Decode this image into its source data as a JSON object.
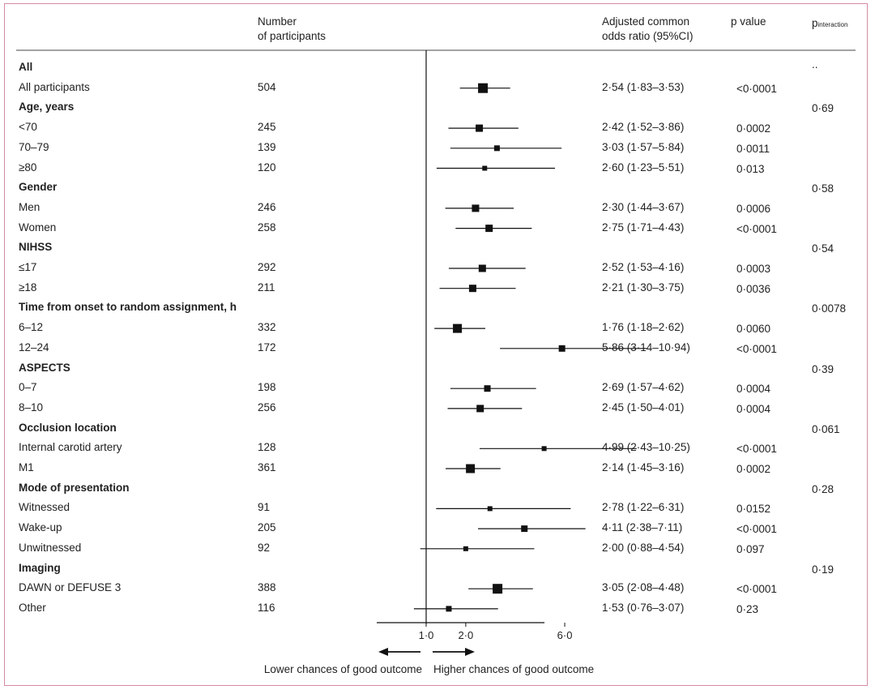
{
  "headers": {
    "participants_l1": "Number",
    "participants_l2": "of participants",
    "or_l1": "Adjusted common",
    "or_l2": "odds ratio (95%CI)",
    "pvalue": "p value",
    "pinteraction_main": "p",
    "pinteraction_sub": "interaction"
  },
  "chart_data": {
    "type": "forest",
    "x_axis": {
      "reference": 1.0,
      "ticks": [
        1.0,
        2.0,
        6.0
      ],
      "tick_labels": [
        "1·0",
        "2·0",
        "6·0"
      ],
      "scale": "sqrt"
    },
    "direction_labels": {
      "left": "Lower chances of good outcome",
      "right": "Higher chances of good outcome"
    },
    "rows": [
      {
        "kind": "header",
        "label": "All",
        "pinteraction": ".."
      },
      {
        "kind": "data",
        "label": "All participants",
        "n": "504",
        "or": 2.54,
        "lo": 1.83,
        "hi": 3.53,
        "or_text": "2·54 (1·83–3·53)",
        "p": "<0·0001",
        "size": 12
      },
      {
        "kind": "header",
        "label": "Age, years",
        "pinteraction": "0·69"
      },
      {
        "kind": "data",
        "label": "<70",
        "n": "245",
        "or": 2.42,
        "lo": 1.52,
        "hi": 3.86,
        "or_text": "2·42 (1·52–3·86)",
        "p": "0·0002",
        "size": 9
      },
      {
        "kind": "data",
        "label": "70–79",
        "n": "139",
        "or": 3.03,
        "lo": 1.57,
        "hi": 5.84,
        "or_text": "3·03 (1·57–5·84)",
        "p": "0·0011",
        "size": 7
      },
      {
        "kind": "data",
        "label": "≥80",
        "n": "120",
        "or": 2.6,
        "lo": 1.23,
        "hi": 5.51,
        "or_text": "2·60 (1·23–5·51)",
        "p": "0·013",
        "size": 6
      },
      {
        "kind": "header",
        "label": "Gender",
        "pinteraction": "0·58"
      },
      {
        "kind": "data",
        "label": "Men",
        "n": "246",
        "or": 2.3,
        "lo": 1.44,
        "hi": 3.67,
        "or_text": "2·30 (1·44–3·67)",
        "p": "0·0006",
        "size": 9
      },
      {
        "kind": "data",
        "label": "Women",
        "n": "258",
        "or": 2.75,
        "lo": 1.71,
        "hi": 4.43,
        "or_text": "2·75 (1·71–4·43)",
        "p": "<0·0001",
        "size": 9
      },
      {
        "kind": "header",
        "label": "NIHSS",
        "pinteraction": "0·54"
      },
      {
        "kind": "data",
        "label": "≤17",
        "n": "292",
        "or": 2.52,
        "lo": 1.53,
        "hi": 4.16,
        "or_text": "2·52 (1·53–4·16)",
        "p": "0·0003",
        "size": 9
      },
      {
        "kind": "data",
        "label": "≥18",
        "n": "211",
        "or": 2.21,
        "lo": 1.3,
        "hi": 3.75,
        "or_text": "2·21 (1·30–3·75)",
        "p": "0·0036",
        "size": 9
      },
      {
        "kind": "header",
        "label": "Time from onset to random assignment, h",
        "pinteraction": "0·0078"
      },
      {
        "kind": "data",
        "label": "6–12",
        "n": "332",
        "or": 1.76,
        "lo": 1.18,
        "hi": 2.62,
        "or_text": "1·76 (1·18–2·62)",
        "p": "0·0060",
        "size": 11
      },
      {
        "kind": "data",
        "label": "12–24",
        "n": "172",
        "or": 5.86,
        "lo": 3.14,
        "hi": 10.94,
        "or_text": "5·86 (3·14–10·94)",
        "p": "<0·0001",
        "size": 8
      },
      {
        "kind": "header",
        "label": "ASPECTS",
        "pinteraction": "0·39"
      },
      {
        "kind": "data",
        "label": "0–7",
        "n": "198",
        "or": 2.69,
        "lo": 1.57,
        "hi": 4.62,
        "or_text": "2·69 (1·57–4·62)",
        "p": "0·0004",
        "size": 8
      },
      {
        "kind": "data",
        "label": "8–10",
        "n": "256",
        "or": 2.45,
        "lo": 1.5,
        "hi": 4.01,
        "or_text": "2·45 (1·50–4·01)",
        "p": "0·0004",
        "size": 9
      },
      {
        "kind": "header",
        "label": "Occlusion location",
        "pinteraction": "0·061"
      },
      {
        "kind": "data",
        "label": "Internal carotid artery",
        "n": "128",
        "or": 4.99,
        "lo": 2.43,
        "hi": 10.25,
        "or_text": "4·99 (2·43–10·25)",
        "p": "<0·0001",
        "size": 6
      },
      {
        "kind": "data",
        "label": "M1",
        "n": "361",
        "or": 2.14,
        "lo": 1.45,
        "hi": 3.16,
        "or_text": "2·14 (1·45–3·16)",
        "p": "0·0002",
        "size": 11
      },
      {
        "kind": "header",
        "label": "Mode of presentation",
        "pinteraction": "0·28"
      },
      {
        "kind": "data",
        "label": "Witnessed",
        "n": "91",
        "or": 2.78,
        "lo": 1.22,
        "hi": 6.31,
        "or_text": "2·78 (1·22–6·31)",
        "p": "0·0152",
        "size": 6
      },
      {
        "kind": "data",
        "label": "Wake-up",
        "n": "205",
        "or": 4.11,
        "lo": 2.38,
        "hi": 7.11,
        "or_text": "4·11 (2·38–7·11)",
        "p": "<0·0001",
        "size": 8
      },
      {
        "kind": "data",
        "label": "Unwitnessed",
        "n": "92",
        "or": 2.0,
        "lo": 0.88,
        "hi": 4.54,
        "or_text": "2·00 (0·88–4·54)",
        "p": "0·097",
        "size": 6
      },
      {
        "kind": "header",
        "label": "Imaging",
        "pinteraction": "0·19"
      },
      {
        "kind": "data",
        "label": "DAWN or DEFUSE 3",
        "n": "388",
        "or": 3.05,
        "lo": 2.08,
        "hi": 4.48,
        "or_text": "3·05 (2·08–4·48)",
        "p": "<0·0001",
        "size": 12
      },
      {
        "kind": "data",
        "label": "Other",
        "n": "116",
        "or": 1.53,
        "lo": 0.76,
        "hi": 3.07,
        "or_text": "1·53 (0·76–3·07)",
        "p": "0·23",
        "size": 7
      }
    ]
  }
}
